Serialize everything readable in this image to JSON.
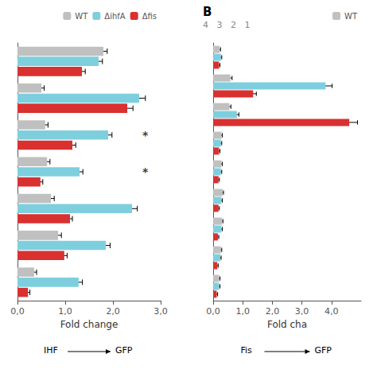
{
  "chart_data": [
    {
      "type": "bar",
      "orientation": "horizontal",
      "categories": [
        null,
        null,
        null,
        null,
        null,
        null,
        null
      ],
      "series": [
        {
          "name": "WT",
          "color": "#c0c0c0",
          "values": [
            1.8,
            0.5,
            0.58,
            0.62,
            0.7,
            0.85,
            0.35
          ],
          "errors": [
            0.08,
            0.06,
            0.06,
            0.06,
            0.07,
            0.07,
            0.05
          ]
        },
        {
          "name": "ΔihfA",
          "color": "#7ecfde",
          "values": [
            1.7,
            2.55,
            1.9,
            1.3,
            2.4,
            1.85,
            1.28
          ],
          "errors": [
            0.08,
            0.13,
            0.08,
            0.07,
            0.11,
            0.09,
            0.08
          ]
        },
        {
          "name": "Δfis",
          "color": "#d93030",
          "values": [
            1.35,
            2.3,
            1.15,
            0.48,
            1.1,
            0.98,
            0.22
          ],
          "errors": [
            0.07,
            0.12,
            0.07,
            0.05,
            0.05,
            0.06,
            0.04
          ]
        }
      ],
      "xlim": [
        0,
        3.0
      ],
      "xticks": [
        {
          "value": 0.0,
          "label": "0,0"
        },
        {
          "value": 1.0,
          "label": "1,0"
        },
        {
          "value": 2.0,
          "label": "2,0"
        },
        {
          "value": 3.0,
          "label": "3,0"
        }
      ],
      "xlabel": "Fold change",
      "legend": "upper right",
      "grid": false,
      "tick_labels": "x",
      "annotations": [
        {
          "text": "*",
          "x": 2.6,
          "y": 2
        },
        {
          "text": "*",
          "x": 2.6,
          "y": 3
        },
        {
          "text": "IHF"
        },
        {
          "text": "GFP"
        }
      ]
    },
    {
      "type": "bar",
      "orientation": "horizontal",
      "title": "B",
      "subtitle": "4   3   2   1",
      "categories": [
        null,
        null,
        null,
        null,
        null,
        null,
        null,
        null,
        null
      ],
      "series": [
        {
          "name": "WT",
          "color": "#c0c0c0",
          "values": [
            0.22,
            0.58,
            0.55,
            0.28,
            0.28,
            0.32,
            0.3,
            0.26,
            0.2
          ],
          "errors": [
            0.03,
            0.06,
            0.05,
            0.03,
            0.03,
            0.03,
            0.03,
            0.03,
            0.03
          ]
        },
        {
          "color": "#7ecfde",
          "values": [
            0.26,
            3.8,
            0.8,
            0.26,
            0.26,
            0.28,
            0.28,
            0.24,
            0.2
          ],
          "errors": [
            0.03,
            0.22,
            0.07,
            0.03,
            0.03,
            0.03,
            0.03,
            0.03,
            0.03
          ]
        },
        {
          "color": "#d93030",
          "values": [
            0.2,
            1.35,
            4.6,
            0.2,
            0.18,
            0.18,
            0.16,
            0.14,
            0.12
          ],
          "errors": [
            0.03,
            0.11,
            0.28,
            0.03,
            0.03,
            0.03,
            0.03,
            0.03,
            0.03
          ]
        }
      ],
      "xlim": [
        0,
        5.0
      ],
      "xticks": [
        {
          "value": 0.0,
          "label": "0,0"
        },
        {
          "value": 1.0,
          "label": "1,0"
        },
        {
          "value": 2.0,
          "label": "2,0"
        },
        {
          "value": 3.0,
          "label": "3,0"
        },
        {
          "value": 4.0,
          "label": "4,0"
        }
      ],
      "xlabel": "Fold cha",
      "legend": "upper right",
      "grid": false,
      "tick_labels": "x",
      "annotations": [
        {
          "text": "Fis"
        },
        {
          "text": "GFP"
        }
      ]
    }
  ]
}
